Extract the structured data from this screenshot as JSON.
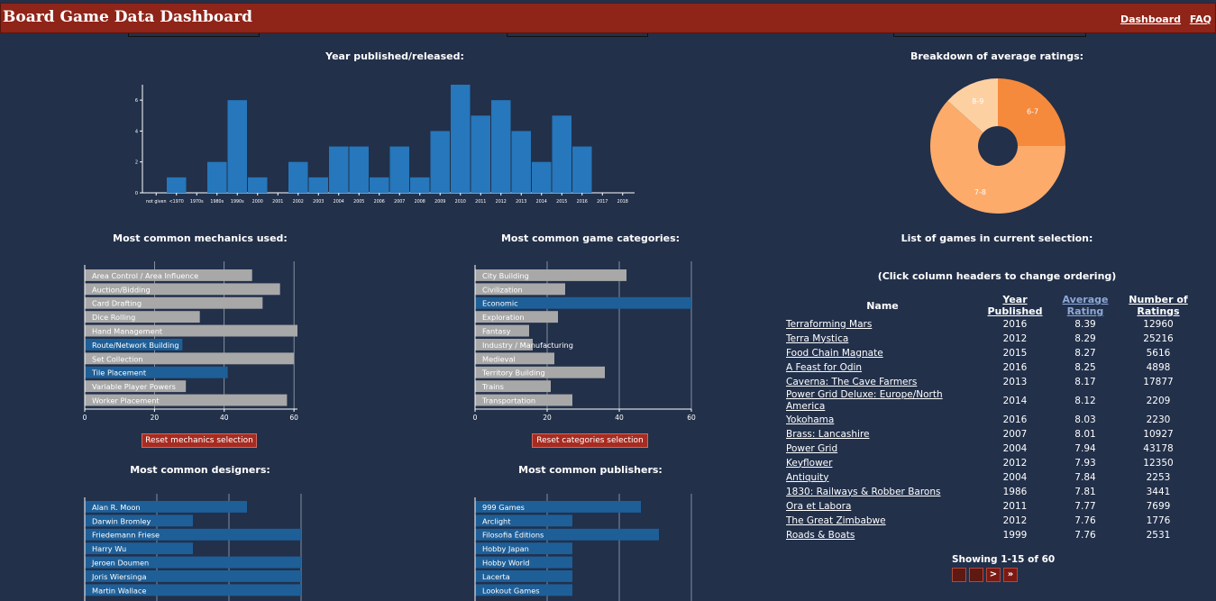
{
  "header": {
    "title": "Board Game Data Dashboard",
    "nav": [
      "Dashboard",
      "FAQ"
    ]
  },
  "titles": {
    "year": "Year published/released:",
    "ratings": "Breakdown of average ratings:",
    "mechanics": "Most common mechanics used:",
    "categories": "Most common game categories:",
    "designers": "Most common designers:",
    "publishers": "Most common publishers:",
    "list": "List of games in current selection:"
  },
  "buttons": {
    "reset_mechanics": "Reset mechanics selection",
    "reset_categories": "Reset categories selection"
  },
  "table": {
    "hint": "(Click column headers to change ordering)",
    "headers": {
      "name": "Name",
      "year": "Year Published",
      "rating": "Average Rating",
      "num": "Number of Ratings"
    },
    "rows": [
      {
        "name": "Terraforming Mars",
        "year": "2016",
        "rating": "8.39",
        "num": "12960"
      },
      {
        "name": "Terra Mystica",
        "year": "2012",
        "rating": "8.29",
        "num": "25216"
      },
      {
        "name": "Food Chain Magnate",
        "year": "2015",
        "rating": "8.27",
        "num": "5616"
      },
      {
        "name": "A Feast for Odin",
        "year": "2016",
        "rating": "8.25",
        "num": "4898"
      },
      {
        "name": "Caverna: The Cave Farmers",
        "year": "2013",
        "rating": "8.17",
        "num": "17877"
      },
      {
        "name": "Power Grid Deluxe: Europe/North America",
        "year": "2014",
        "rating": "8.12",
        "num": "2209"
      },
      {
        "name": "Yokohama",
        "year": "2016",
        "rating": "8.03",
        "num": "2230"
      },
      {
        "name": "Brass: Lancashire",
        "year": "2007",
        "rating": "8.01",
        "num": "10927"
      },
      {
        "name": "Power Grid",
        "year": "2004",
        "rating": "7.94",
        "num": "43178"
      },
      {
        "name": "Keyflower",
        "year": "2012",
        "rating": "7.93",
        "num": "12350"
      },
      {
        "name": "Antiquity",
        "year": "2004",
        "rating": "7.84",
        "num": "2253"
      },
      {
        "name": "1830: Railways & Robber Barons",
        "year": "1986",
        "rating": "7.81",
        "num": "3441"
      },
      {
        "name": "Ora et Labora",
        "year": "2011",
        "rating": "7.77",
        "num": "7699"
      },
      {
        "name": "The Great Zimbabwe",
        "year": "2012",
        "rating": "7.76",
        "num": "1776"
      },
      {
        "name": "Roads & Boats",
        "year": "1999",
        "rating": "7.76",
        "num": "2531"
      }
    ],
    "showing": "Showing 1-15 of 60",
    "pager": [
      "",
      "",
      ">",
      "»"
    ]
  },
  "colors": {
    "blue": "#2677bb",
    "gray": "#a8a8a8",
    "dark_blue": "#1e5f98",
    "header": "#8f2419"
  },
  "chart_data": [
    {
      "type": "bar",
      "title": "Year published/released:",
      "categories": [
        "not given",
        "<1970",
        "1970s",
        "1980s",
        "1990s",
        "2000",
        "2001",
        "2002",
        "2003",
        "2004",
        "2005",
        "2006",
        "2007",
        "2008",
        "2009",
        "2010",
        "2011",
        "2012",
        "2013",
        "2014",
        "2015",
        "2016",
        "2017",
        "2018"
      ],
      "values": [
        0,
        1,
        0,
        2,
        6,
        1,
        0,
        2,
        1,
        3,
        3,
        1,
        3,
        1,
        4,
        7,
        5,
        6,
        4,
        2,
        5,
        3,
        0,
        0
      ],
      "y_ticks": [
        0,
        2,
        4,
        6
      ],
      "ylim": [
        0,
        7
      ]
    },
    {
      "type": "pie",
      "title": "Breakdown of average ratings:",
      "labels": [
        "6-7",
        "7-8",
        "8-9"
      ],
      "values": [
        15,
        37,
        8
      ],
      "colors": [
        "#f58a3c",
        "#fdab6a",
        "#fdd0a2"
      ]
    },
    {
      "type": "bar",
      "title": "Most common mechanics used:",
      "orientation": "horizontal",
      "categories": [
        "Area Control / Area Influence",
        "Auction/Bidding",
        "Card Drafting",
        "Dice Rolling",
        "Hand Management",
        "Route/Network Building",
        "Set Collection",
        "Tile Placement",
        "Variable Player Powers",
        "Worker Placement"
      ],
      "values": [
        48,
        56,
        51,
        33,
        61,
        28,
        60,
        41,
        29,
        58
      ],
      "selected": [
        "Route/Network Building",
        "Tile Placement"
      ],
      "x_ticks": [
        0,
        20,
        40,
        60
      ],
      "xlim": [
        0,
        61
      ]
    },
    {
      "type": "bar",
      "title": "Most common game categories:",
      "orientation": "horizontal",
      "categories": [
        "City Building",
        "Civilization",
        "Economic",
        "Exploration",
        "Fantasy",
        "Industry / Manufacturing",
        "Medieval",
        "Territory Building",
        "Trains",
        "Transportation"
      ],
      "values": [
        42,
        25,
        60,
        23,
        15,
        16,
        22,
        36,
        21,
        27
      ],
      "selected": [
        "Economic"
      ],
      "x_ticks": [
        0,
        20,
        40,
        60
      ],
      "xlim": [
        0,
        60
      ]
    },
    {
      "type": "bar",
      "title": "Most common designers:",
      "orientation": "horizontal",
      "categories": [
        "Alan R. Moon",
        "Darwin Bromley",
        "Friedemann Friese",
        "Harry Wu",
        "Jeroen Doumen",
        "Joris Wiersinga",
        "Martin Wallace"
      ],
      "values": [
        4.5,
        3,
        6,
        3,
        6,
        6,
        6
      ],
      "xlim": [
        0,
        6
      ]
    },
    {
      "type": "bar",
      "title": "Most common publishers:",
      "orientation": "horizontal",
      "categories": [
        "999 Games",
        "Arclight",
        "Filosofia Éditions",
        "Hobby Japan",
        "Hobby World",
        "Lacerta",
        "Lookout Games"
      ],
      "values": [
        4.6,
        2.7,
        5.1,
        2.7,
        2.7,
        2.7,
        2.7
      ],
      "xlim": [
        0,
        6
      ]
    }
  ]
}
